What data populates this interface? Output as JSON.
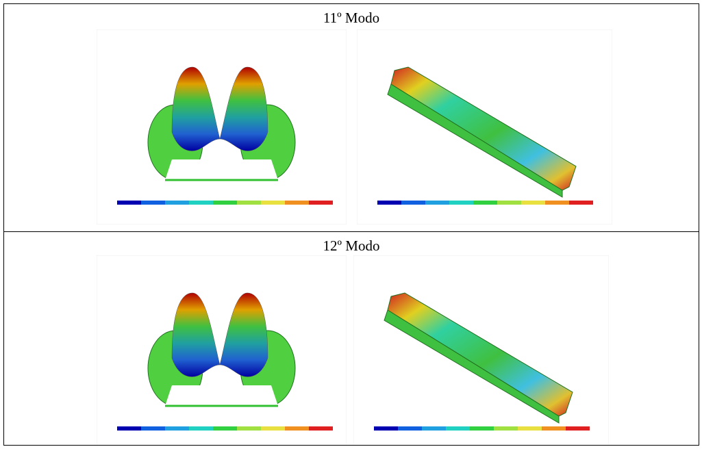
{
  "rows": [
    {
      "title": "11º Modo"
    },
    {
      "title": "12º Modo"
    }
  ]
}
